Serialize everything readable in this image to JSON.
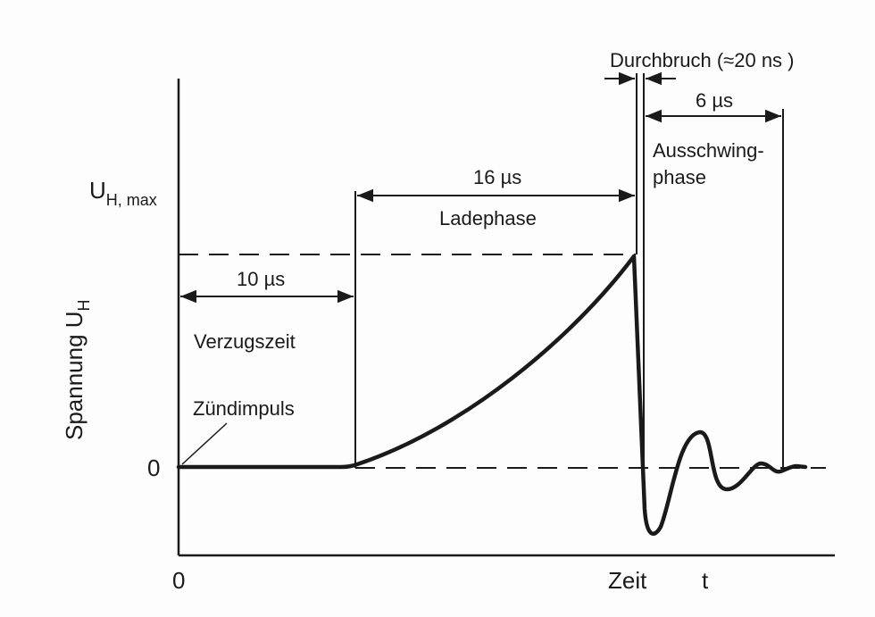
{
  "y_axis_label_main": "Spannung U",
  "y_axis_label_sub": "H",
  "umax_label_main": "U",
  "umax_label_sub": "H, max",
  "zero_y_label": "0",
  "zero_x_label": "0",
  "x_axis_label": "Zeit",
  "x_axis_symbol": "t",
  "segments": {
    "delay_duration": "10 µs",
    "delay_name": "Verzugszeit",
    "ignition": "Zündimpuls",
    "charge_duration": "16 µs",
    "charge_name": "Ladephase",
    "breakdown": "Durchbruch (≈20 ns )",
    "ringing_duration": "6 µs",
    "ringing_name_line1": "Ausschwing-",
    "ringing_name_line2": "phase"
  },
  "colors": {
    "ink": "#1a1a1a",
    "background": "#fdfdfd"
  }
}
